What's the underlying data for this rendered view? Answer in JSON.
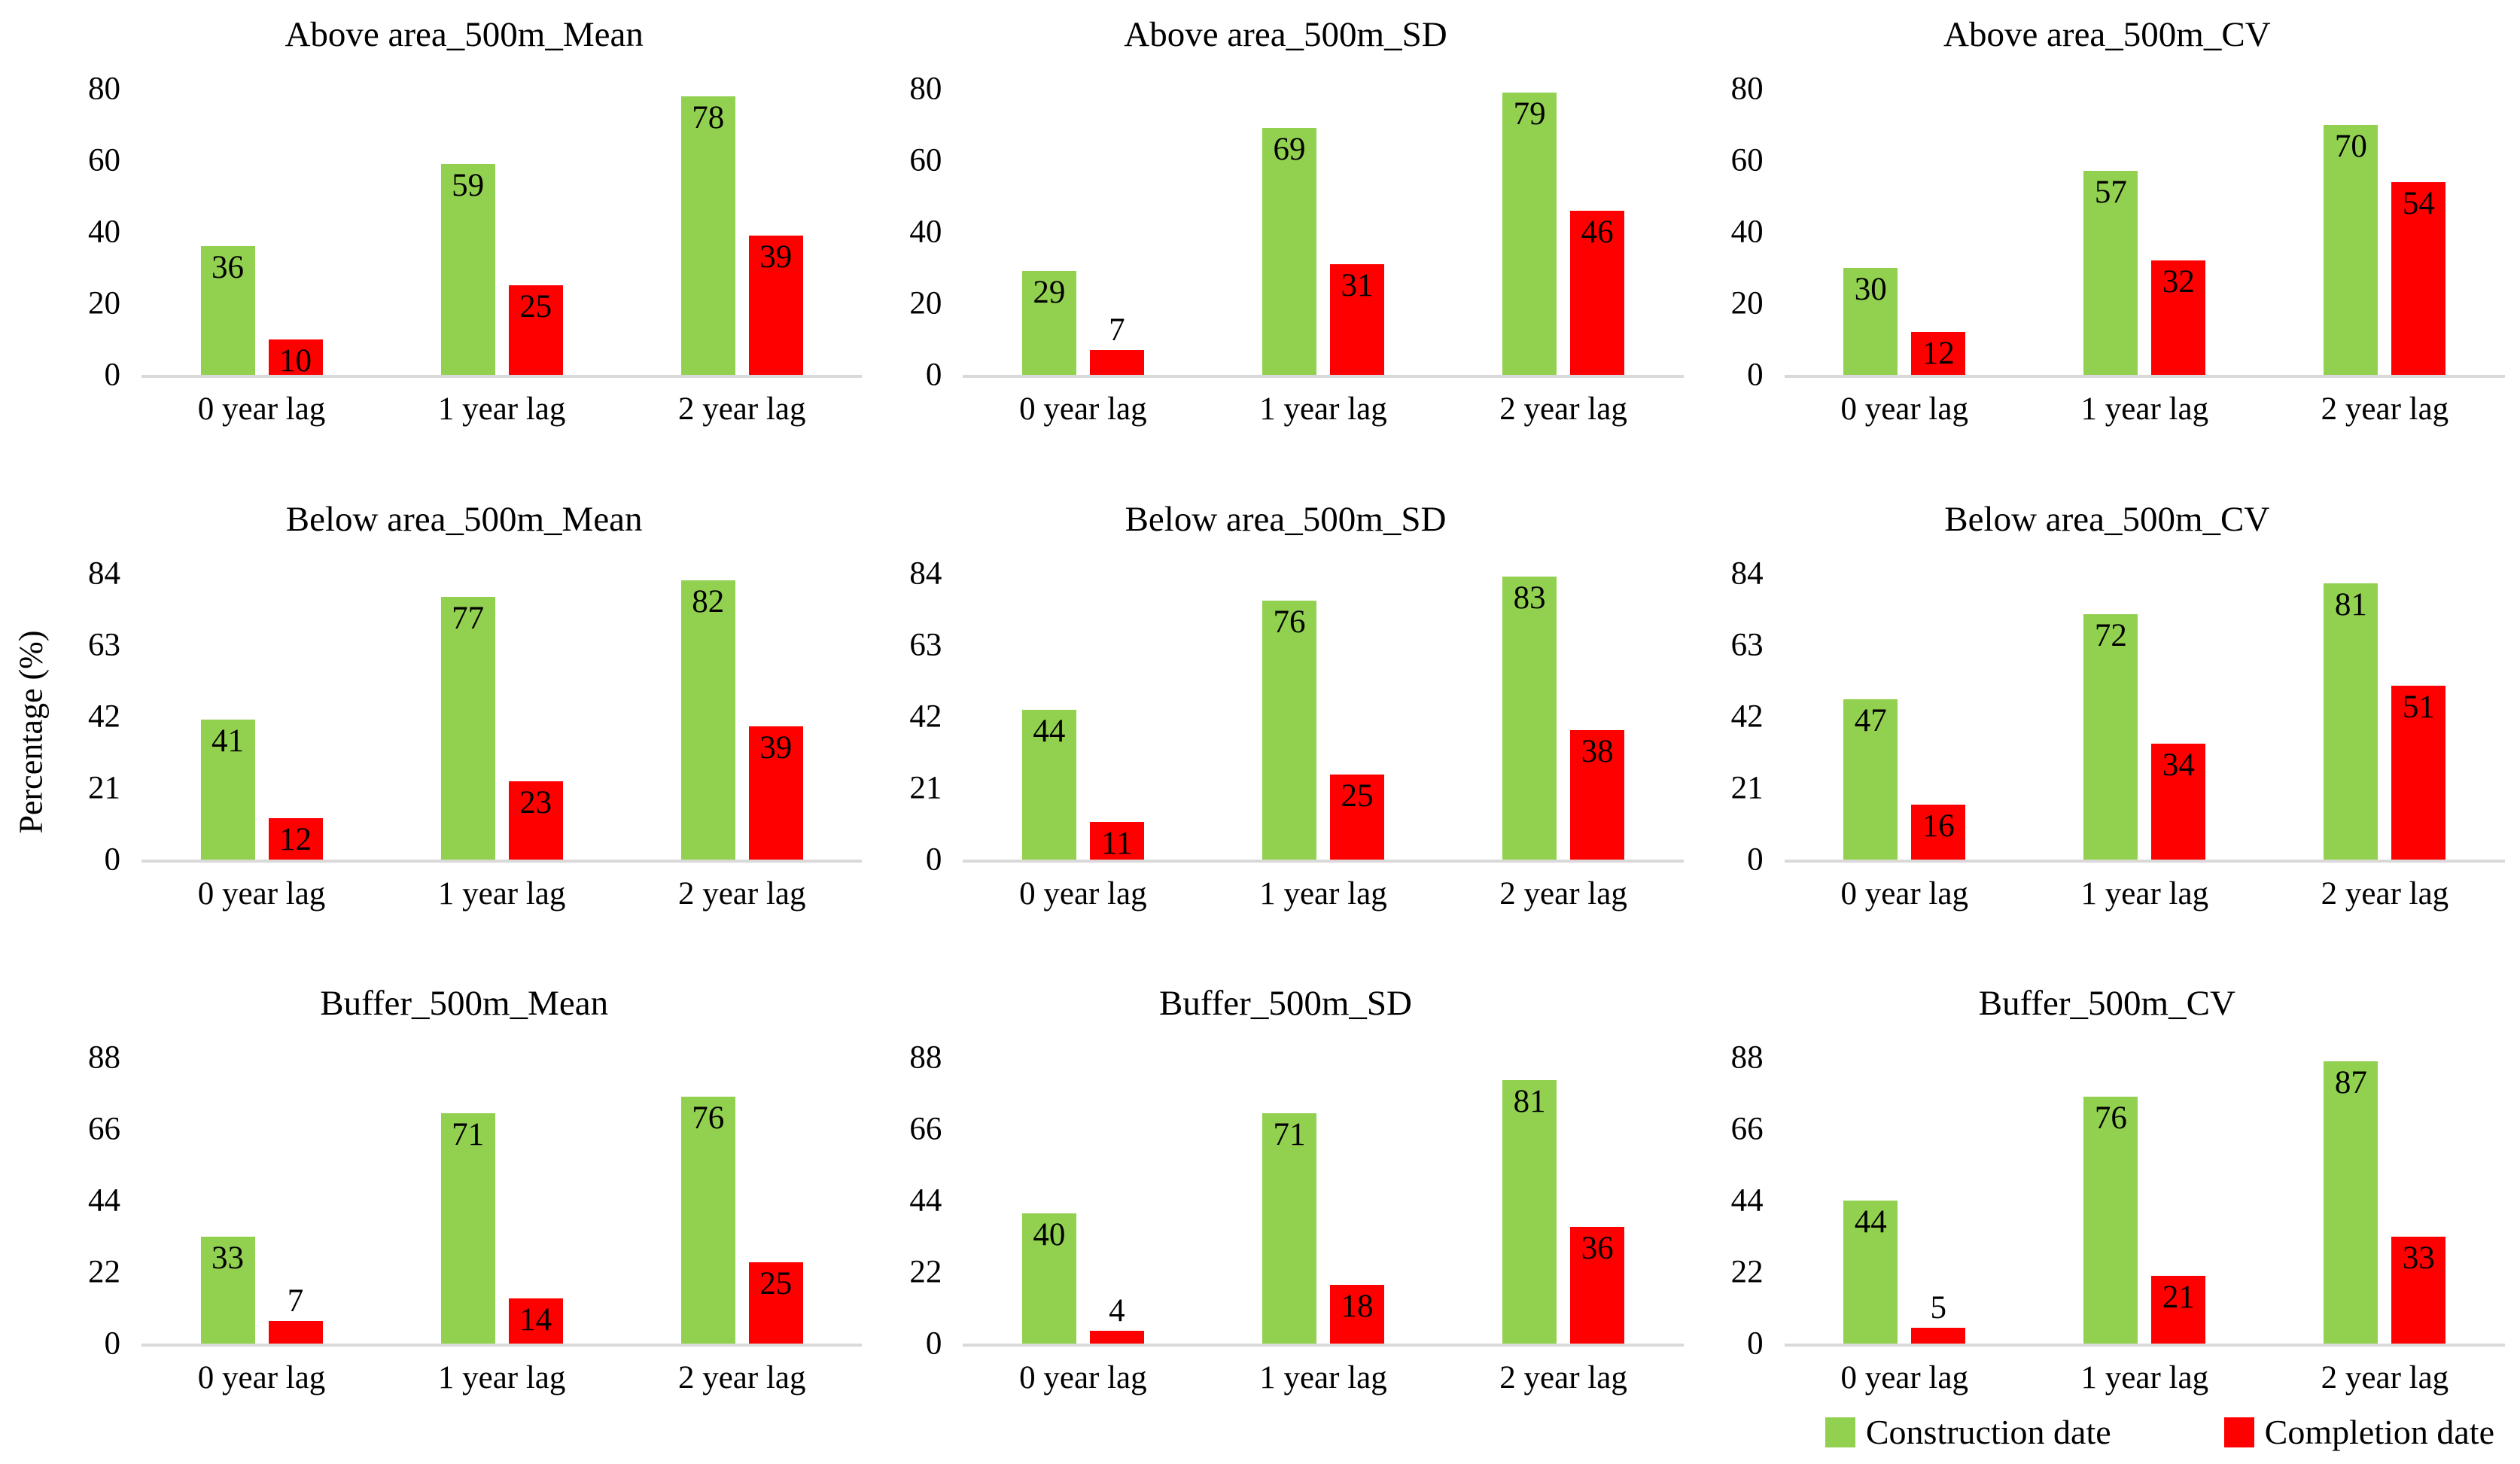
{
  "figure": {
    "ylabel": "Percentage (%)",
    "categories": [
      "0 year lag",
      "1 year lag",
      "2 year lag"
    ],
    "legend": [
      {
        "label": "Construction date",
        "color": "#92D050"
      },
      {
        "label": "Completion date",
        "color": "#FF0000"
      }
    ],
    "colors": {
      "construction": "#92D050",
      "completion": "#FF0000",
      "axis_line": "#d9d9d9"
    }
  },
  "chart_data": [
    {
      "type": "bar",
      "title": "Above area_500m_Mean",
      "categories": [
        "0 year lag",
        "1 year lag",
        "2 year lag"
      ],
      "ylim": [
        0,
        80
      ],
      "yticks": [
        0,
        20,
        40,
        60,
        80
      ],
      "grid": false,
      "series": [
        {
          "name": "Construction date",
          "values": [
            36,
            59,
            78
          ]
        },
        {
          "name": "Completion date",
          "values": [
            10,
            25,
            39
          ]
        }
      ]
    },
    {
      "type": "bar",
      "title": "Above area_500m_SD",
      "categories": [
        "0 year lag",
        "1 year lag",
        "2 year lag"
      ],
      "ylim": [
        0,
        80
      ],
      "yticks": [
        0,
        20,
        40,
        60,
        80
      ],
      "grid": false,
      "series": [
        {
          "name": "Construction date",
          "values": [
            29,
            69,
            79
          ]
        },
        {
          "name": "Completion date",
          "values": [
            7,
            31,
            46
          ]
        }
      ]
    },
    {
      "type": "bar",
      "title": "Above area_500m_CV",
      "categories": [
        "0 year lag",
        "1 year lag",
        "2 year lag"
      ],
      "ylim": [
        0,
        80
      ],
      "yticks": [
        0,
        20,
        40,
        60,
        80
      ],
      "grid": false,
      "series": [
        {
          "name": "Construction date",
          "values": [
            30,
            57,
            70
          ]
        },
        {
          "name": "Completion date",
          "values": [
            12,
            32,
            54
          ]
        }
      ]
    },
    {
      "type": "bar",
      "title": "Below area_500m_Mean",
      "categories": [
        "0 year lag",
        "1 year lag",
        "2 year lag"
      ],
      "ylim": [
        0,
        84
      ],
      "yticks": [
        0,
        21,
        42,
        63,
        84
      ],
      "grid": false,
      "series": [
        {
          "name": "Construction date",
          "values": [
            41,
            77,
            82
          ]
        },
        {
          "name": "Completion date",
          "values": [
            12,
            23,
            39
          ]
        }
      ]
    },
    {
      "type": "bar",
      "title": "Below area_500m_SD",
      "categories": [
        "0 year lag",
        "1 year lag",
        "2 year lag"
      ],
      "ylim": [
        0,
        84
      ],
      "yticks": [
        0,
        21,
        42,
        63,
        84
      ],
      "grid": false,
      "series": [
        {
          "name": "Construction date",
          "values": [
            44,
            76,
            83
          ]
        },
        {
          "name": "Completion date",
          "values": [
            11,
            25,
            38
          ]
        }
      ]
    },
    {
      "type": "bar",
      "title": "Below area_500m_CV",
      "categories": [
        "0 year lag",
        "1 year lag",
        "2 year lag"
      ],
      "ylim": [
        0,
        84
      ],
      "yticks": [
        0,
        21,
        42,
        63,
        84
      ],
      "grid": false,
      "series": [
        {
          "name": "Construction date",
          "values": [
            47,
            72,
            81
          ]
        },
        {
          "name": "Completion date",
          "values": [
            16,
            34,
            51
          ]
        }
      ]
    },
    {
      "type": "bar",
      "title": "Buffer_500m_Mean",
      "categories": [
        "0 year lag",
        "1 year lag",
        "2 year lag"
      ],
      "ylim": [
        0,
        88
      ],
      "yticks": [
        0,
        22,
        44,
        66,
        88
      ],
      "grid": false,
      "series": [
        {
          "name": "Construction date",
          "values": [
            33,
            71,
            76
          ]
        },
        {
          "name": "Completion date",
          "values": [
            7,
            14,
            25
          ]
        }
      ]
    },
    {
      "type": "bar",
      "title": "Buffer_500m_SD",
      "categories": [
        "0 year lag",
        "1 year lag",
        "2 year lag"
      ],
      "ylim": [
        0,
        88
      ],
      "yticks": [
        0,
        22,
        44,
        66,
        88
      ],
      "grid": false,
      "series": [
        {
          "name": "Construction date",
          "values": [
            40,
            71,
            81
          ]
        },
        {
          "name": "Completion date",
          "values": [
            4,
            18,
            36
          ]
        }
      ]
    },
    {
      "type": "bar",
      "title": "Buffer_500m_CV",
      "categories": [
        "0 year lag",
        "1 year lag",
        "2 year lag"
      ],
      "ylim": [
        0,
        88
      ],
      "yticks": [
        0,
        22,
        44,
        66,
        88
      ],
      "grid": false,
      "series": [
        {
          "name": "Construction date",
          "values": [
            44,
            76,
            87
          ]
        },
        {
          "name": "Completion date",
          "values": [
            5,
            21,
            33
          ]
        }
      ]
    }
  ]
}
